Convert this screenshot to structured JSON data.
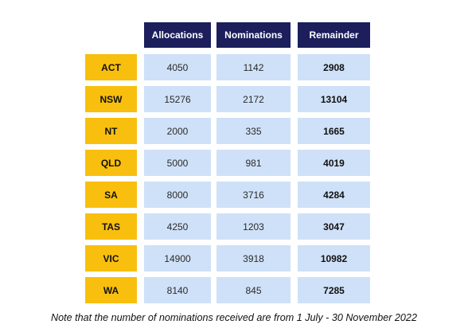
{
  "chart_data": {
    "type": "table",
    "columns": [
      "Allocations",
      "Nominations",
      "Remainder"
    ],
    "rows": [
      {
        "state": "ACT",
        "values": [
          "4050",
          "1142",
          "2908"
        ]
      },
      {
        "state": "NSW",
        "values": [
          "15276",
          "2172",
          "13104"
        ]
      },
      {
        "state": "NT",
        "values": [
          "2000",
          "335",
          "1665"
        ]
      },
      {
        "state": "QLD",
        "values": [
          "5000",
          "981",
          "4019"
        ]
      },
      {
        "state": "SA",
        "values": [
          "8000",
          "3716",
          "4284"
        ]
      },
      {
        "state": "TAS",
        "values": [
          "4250",
          "1203",
          "3047"
        ]
      },
      {
        "state": "VIC",
        "values": [
          "14900",
          "3918",
          "10982"
        ]
      },
      {
        "state": "WA",
        "values": [
          "8140",
          "845",
          "7285"
        ]
      }
    ]
  },
  "note": "Note that the number of nominations received are from 1 July - 30 November 2022",
  "colors": {
    "header_bg": "#1c1f5b",
    "state_bg": "#f9bf0e",
    "cell_bg": "#cfe1f8"
  }
}
